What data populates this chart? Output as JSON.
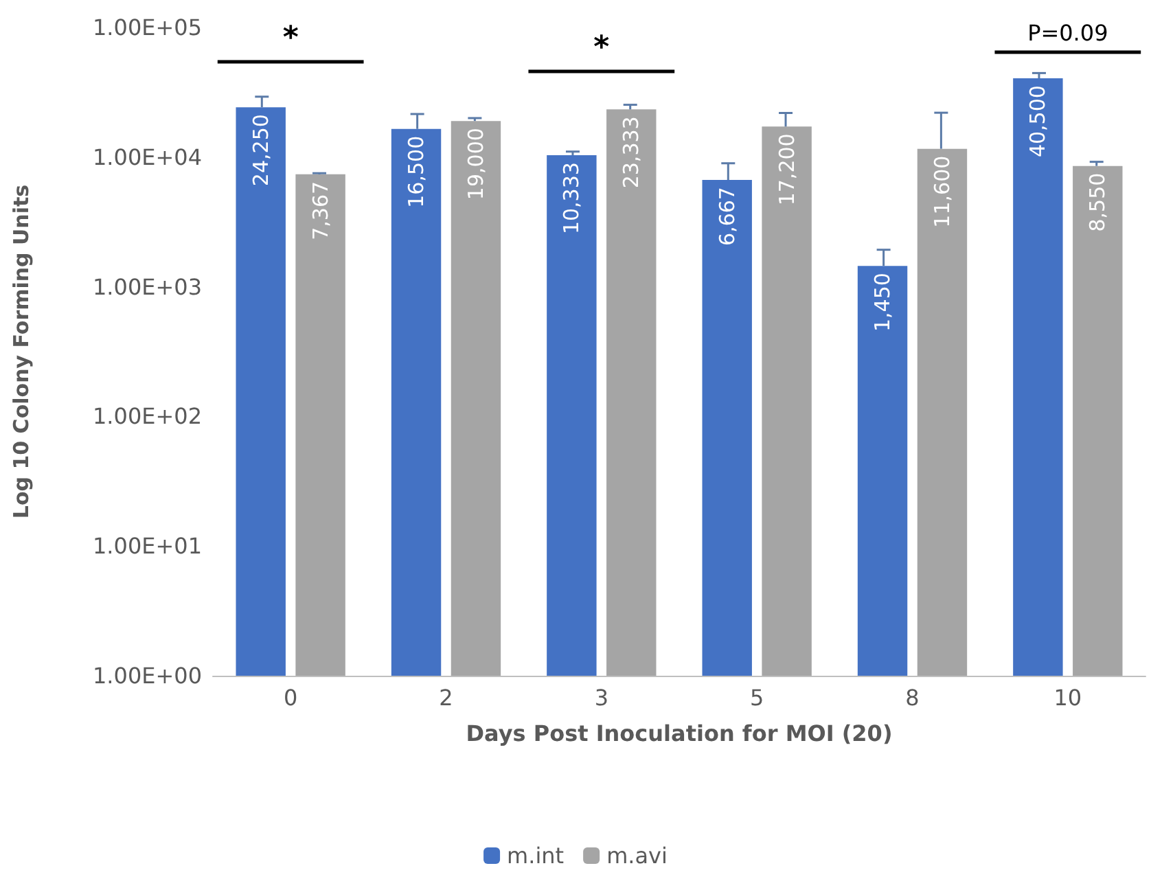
{
  "chart_data": {
    "type": "bar",
    "xlabel": "Days Post Inoculation for MOI (20)",
    "ylabel": "Log 10 Colony Forming Units",
    "categories": [
      "0",
      "2",
      "3",
      "5",
      "8",
      "10"
    ],
    "series": [
      {
        "name": "m.int",
        "color": "#4472c4",
        "values": [
          24250,
          16500,
          10333,
          6667,
          1450,
          40500
        ],
        "errors": [
          5000,
          5000,
          700,
          2300,
          480,
          4000
        ],
        "value_labels": [
          "24,250",
          "16,500",
          "10,333",
          "6,667",
          "1,450",
          "40,500"
        ]
      },
      {
        "name": "m.avi",
        "color": "#a5a5a5",
        "values": [
          7367,
          19000,
          23333,
          17200,
          11600,
          8550
        ],
        "errors": [
          150,
          1000,
          2000,
          4700,
          10400,
          650
        ],
        "value_labels": [
          "7,367",
          "19,000",
          "23,333",
          "17,200",
          "11,600",
          "8,550"
        ]
      }
    ],
    "log": "y",
    "ylim": [
      1,
      100000
    ],
    "yticks": [
      {
        "value": 1,
        "label": "1.00E+00"
      },
      {
        "value": 10,
        "label": "1.00E+01"
      },
      {
        "value": 100,
        "label": "1.00E+02"
      },
      {
        "value": 1000,
        "label": "1.00E+03"
      },
      {
        "value": 10000,
        "label": "1.00E+04"
      },
      {
        "value": 100000,
        "label": "1.00E+05"
      }
    ],
    "grid": false,
    "legend": "bottom",
    "annotations": [
      "*",
      "*",
      "P=0.09"
    ]
  }
}
